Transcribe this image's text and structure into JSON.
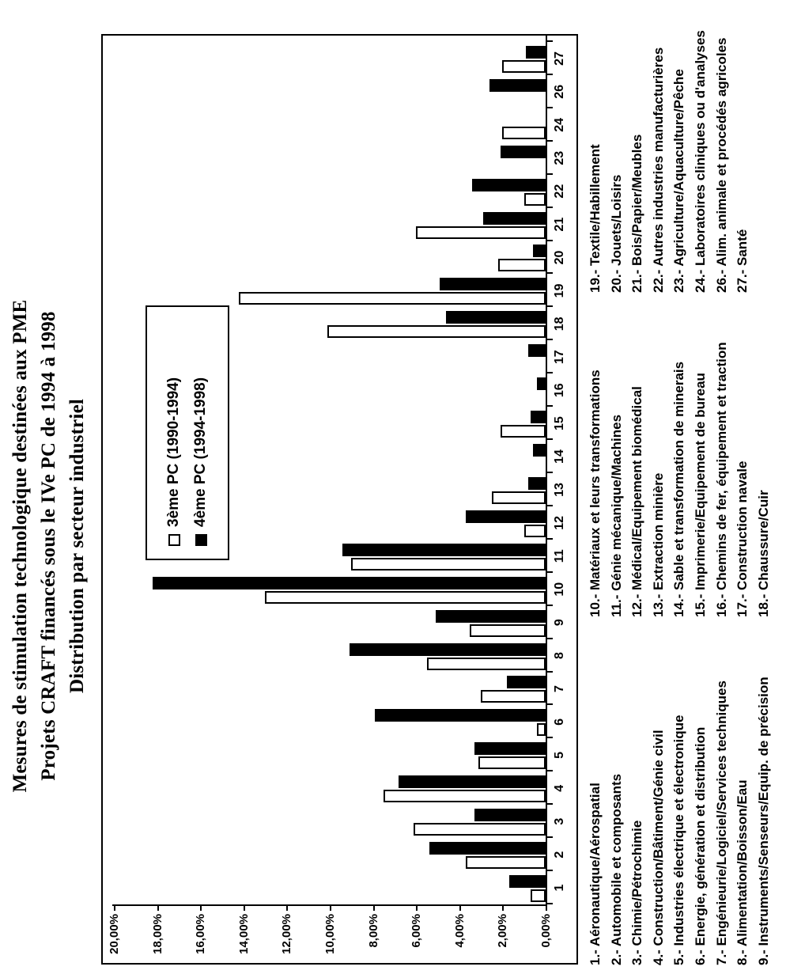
{
  "title": {
    "line1": "Mesures de stimulation technologique destinées aux PME",
    "line2": "Projets CRAFT financés sous le IVe PC de 1994 à 1998",
    "line3": "Distribution par secteur industriel"
  },
  "legend": [
    {
      "marker": "white-square",
      "label": "3ème PC (1990-1994)"
    },
    {
      "marker": "black-square",
      "label": "4ème PC (1994-1998)"
    }
  ],
  "chart_data": {
    "type": "bar",
    "title": "Mesures de stimulation technologique destinées aux PME — Projets CRAFT financés sous le IVe PC de 1994 à 1998 — Distribution par secteur industriel",
    "orientation": "vertical bars, whole figure rotated 90° CCW on the page",
    "categories": [
      "1",
      "2",
      "3",
      "4",
      "5",
      "6",
      "7",
      "8",
      "9",
      "10",
      "11",
      "12",
      "13",
      "14",
      "15",
      "16",
      "17",
      "18",
      "19",
      "20",
      "21",
      "22",
      "23",
      "24",
      "26",
      "27"
    ],
    "series": [
      {
        "name": "3ème PC (1990-1994)",
        "style": "white",
        "values": [
          0.7,
          3.7,
          6.1,
          7.5,
          3.1,
          0.4,
          3.0,
          5.5,
          3.5,
          13.0,
          9.0,
          1.0,
          2.5,
          0,
          2.1,
          0,
          0,
          10.1,
          14.2,
          2.2,
          6.0,
          1.0,
          0,
          2.0,
          0,
          2.0
        ]
      },
      {
        "name": "4ème PC (1994-1998)",
        "style": "black",
        "values": [
          1.7,
          5.4,
          3.3,
          6.8,
          3.3,
          7.9,
          1.8,
          9.1,
          5.1,
          18.2,
          9.4,
          3.7,
          0.8,
          0.6,
          0.7,
          0.4,
          0.8,
          4.6,
          4.9,
          0.6,
          2.9,
          3.4,
          2.1,
          0,
          2.6,
          0.9
        ]
      }
    ],
    "ylim": [
      0,
      20
    ],
    "ytick_labels": [
      "20,00%",
      "18,00%",
      "16,00%",
      "14,00%",
      "12,00%",
      "10,00%",
      "8,00%",
      "6,00%",
      "4,00%",
      "2,00%",
      "0,00%"
    ],
    "grid": "off",
    "legend_position": "inside plot, upper-left area"
  },
  "sector_legend": {
    "col1": [
      "1.- Aéronautique/Aérospatial",
      "2.- Automobile et composants",
      "3.- Chimie/Pétrochimie",
      "4.- Construction/Bâtiment/Génie civil",
      "5.- Industries électrique et électronique",
      "6.- Energie, génération et distribution",
      "7.- Engénieurie/Logiciel/Services techniques",
      "8.- Alimentation/Boisson/Eau",
      "9.- Instruments/Senseurs/Equip. de précision"
    ],
    "col2": [
      "10.- Matériaux et leurs transformations",
      "11.- Génie mécanique/Machines",
      "12.- Médical/Equipement biomédical",
      "13.- Extraction minière",
      "14.- Sable et transformation de minerais",
      "15.- Imprimerie/Equipement de bureau",
      "16.- Chemins de fer, équipement et traction",
      "17.- Construction navale",
      "18.- Chaussure/Cuir"
    ],
    "col3": [
      "19.- Textile/Habillement",
      "20.- Jouets/Loisirs",
      "21.- Bois/Papier/Meubles",
      "22.- Autres industries manufacturières",
      "23.- Agriculture/Aquaculture/Pêche",
      "24.- Laboratoires cliniques ou d'analyses",
      "26.- Alim. animale et procédés agricoles",
      "27.- Santé"
    ]
  },
  "colors": {
    "ink": "#000000",
    "paper": "#ffffff"
  }
}
